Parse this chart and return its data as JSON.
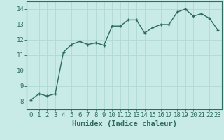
{
  "x": [
    0,
    1,
    2,
    3,
    4,
    5,
    6,
    7,
    8,
    9,
    10,
    11,
    12,
    13,
    14,
    15,
    16,
    17,
    18,
    19,
    20,
    21,
    22,
    23
  ],
  "y": [
    8.1,
    8.5,
    8.35,
    8.5,
    11.2,
    11.7,
    11.9,
    11.7,
    11.8,
    11.65,
    12.9,
    12.9,
    13.3,
    13.3,
    12.45,
    12.8,
    13.0,
    13.0,
    13.8,
    14.0,
    13.55,
    13.7,
    13.4,
    12.65
  ],
  "line_color": "#2e6b5e",
  "bg_color": "#c8ebe8",
  "grid_color": "#b0d8d4",
  "xlabel": "Humidex (Indice chaleur)",
  "ylim": [
    7.5,
    14.5
  ],
  "xlim": [
    -0.5,
    23.5
  ],
  "yticks": [
    8,
    9,
    10,
    11,
    12,
    13,
    14
  ],
  "xticks": [
    0,
    1,
    2,
    3,
    4,
    5,
    6,
    7,
    8,
    9,
    10,
    11,
    12,
    13,
    14,
    15,
    16,
    17,
    18,
    19,
    20,
    21,
    22,
    23
  ],
  "xlabel_fontsize": 7.5,
  "tick_fontsize": 6.5,
  "line_width": 1.0,
  "marker_size": 2.5
}
